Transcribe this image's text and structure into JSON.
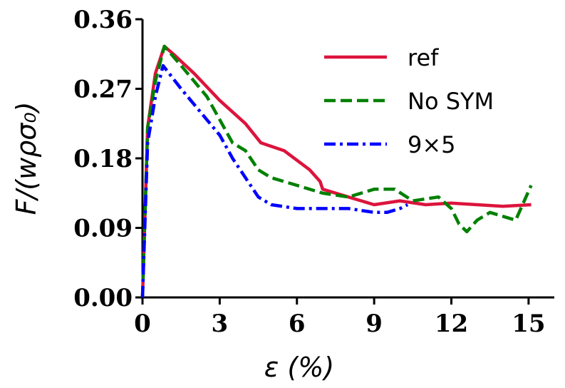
{
  "chart_data": {
    "type": "line",
    "xlabel": "ε (%)",
    "ylabel": "F/(wρσ₀)",
    "xlim": [
      0,
      16
    ],
    "xticks": [
      0,
      3,
      6,
      9,
      12,
      15
    ],
    "ylim": [
      0,
      0.36
    ],
    "yticks": [
      {
        "value": 0,
        "label": "0.00"
      },
      0.09,
      0.18,
      0.27,
      0.36
    ],
    "legend": "upper right",
    "series": [
      {
        "name": "ref",
        "color": "#dc143c",
        "dash": "solid",
        "x": [
          0,
          0.2,
          0.5,
          0.85,
          1.2,
          2,
          3,
          4,
          4.6,
          5.5,
          6.5,
          6.9,
          7,
          8,
          9,
          10,
          11,
          12,
          13,
          14,
          15.1
        ],
        "values": [
          0,
          0.22,
          0.29,
          0.325,
          0.315,
          0.29,
          0.255,
          0.225,
          0.2,
          0.19,
          0.165,
          0.15,
          0.14,
          0.13,
          0.12,
          0.125,
          0.12,
          0.122,
          0.12,
          0.118,
          0.12
        ]
      },
      {
        "name": "No SYM",
        "color": "#008000",
        "dash": "dashed",
        "x": [
          0,
          0.2,
          0.5,
          0.85,
          1.5,
          2.5,
          3,
          3.5,
          4,
          4.5,
          5,
          6,
          7,
          8,
          9,
          9.8,
          10.5,
          11.5,
          12,
          12.3,
          12.6,
          13,
          13.5,
          14,
          14.5,
          15.1
        ],
        "values": [
          0,
          0.22,
          0.28,
          0.325,
          0.3,
          0.26,
          0.23,
          0.2,
          0.19,
          0.165,
          0.155,
          0.145,
          0.135,
          0.13,
          0.14,
          0.14,
          0.125,
          0.13,
          0.115,
          0.095,
          0.085,
          0.1,
          0.11,
          0.105,
          0.1,
          0.145
        ]
      },
      {
        "name": "9×5",
        "color": "#0000ff",
        "dash": "dashdot",
        "x": [
          0,
          0.2,
          0.5,
          0.8,
          1.5,
          2.5,
          3,
          3.5,
          4,
          4.5,
          5,
          6,
          7,
          8,
          9,
          9.5,
          10,
          10.3
        ],
        "values": [
          0,
          0.2,
          0.26,
          0.3,
          0.27,
          0.23,
          0.21,
          0.18,
          0.155,
          0.13,
          0.12,
          0.115,
          0.115,
          0.115,
          0.11,
          0.11,
          0.115,
          0.12
        ]
      }
    ]
  }
}
